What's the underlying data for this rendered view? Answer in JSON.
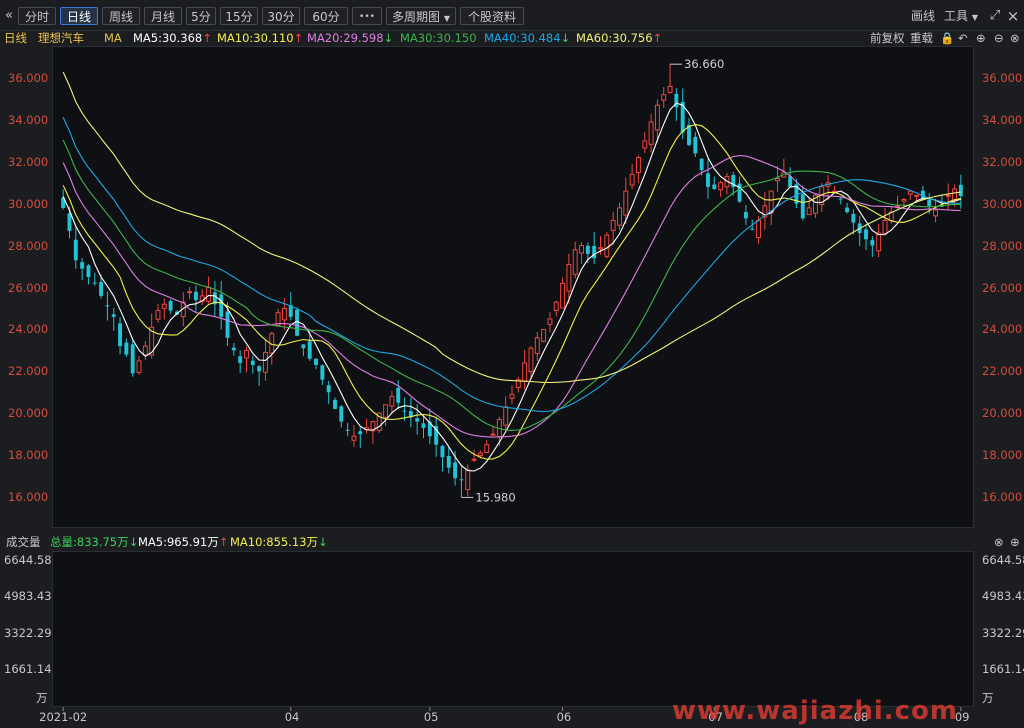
{
  "toolbar": {
    "back_icon": "«",
    "periods": [
      "分时",
      "日线",
      "周线",
      "月线",
      "5分",
      "15分",
      "30分",
      "60分"
    ],
    "active_period": "日线",
    "more_label": "•••",
    "multi_period_label": "多周期图",
    "stock_info_label": "个股资料",
    "draw_label": "画线",
    "tools_label": "工具",
    "expand_icon": "⤢",
    "close_icon": "×"
  },
  "info": {
    "period": "日线",
    "stock_name": "理想汽车",
    "indicator": "MA",
    "ma5": "MA5:30.368",
    "ma10": "MA10:30.110",
    "ma20": "MA20:29.598",
    "ma30": "MA30:30.150",
    "ma40": "MA40:30.484",
    "ma60": "MA60:30.756",
    "ma5_arrow": "↑",
    "ma10_arrow": "↑",
    "ma20_arrow": "↓",
    "ma40_arrow": "↓",
    "ma60_arrow": "↑",
    "adjust_label": "前复权",
    "reload_label": "重载"
  },
  "volume": {
    "title": "成交量",
    "total": "总量:833.75万",
    "total_arrow": "↓",
    "ma5": "MA5:965.91万",
    "ma5_arrow": "↑",
    "ma10": "MA10:855.13万",
    "ma10_arrow": "↓",
    "unit": "万"
  },
  "price_axis": [
    "36.000",
    "34.000",
    "32.000",
    "30.000",
    "28.000",
    "26.000",
    "24.000",
    "22.000",
    "20.000",
    "18.000",
    "16.000"
  ],
  "volume_axis": [
    "6644.58",
    "4983.43",
    "3322.29",
    "1661.14"
  ],
  "date_axis": [
    "2021-02",
    "04",
    "05",
    "06",
    "07",
    "08",
    "09"
  ],
  "annotations": {
    "high": "36.660",
    "low": "15.980"
  },
  "watermark": "www.wajiazhi.com",
  "colors": {
    "up": "#f0463c",
    "down": "#22c3d4",
    "ma5": "#ffffff",
    "ma10": "#f4f04a",
    "ma20": "#e07ee6",
    "ma30": "#3cb44b",
    "ma40": "#1ea7e4",
    "ma60": "#f2f27a",
    "axis_label": "#d94a3a",
    "background": "#0f1013"
  },
  "chart_data": {
    "type": "candlestick",
    "high": 36.66,
    "low": 15.98,
    "ylim": [
      15.0,
      37.5
    ],
    "closes": [
      29.8,
      28.7,
      27.3,
      26.9,
      26.5,
      26.2,
      25.6,
      25.1,
      24.6,
      23.2,
      22.8,
      21.9,
      22.5,
      23.2,
      24.1,
      24.9,
      25.2,
      24.9,
      24.7,
      25.3,
      25.8,
      25.4,
      25.6,
      26.0,
      25.2,
      24.6,
      23.6,
      23.0,
      22.4,
      23.0,
      22.3,
      22.0,
      22.9,
      23.8,
      24.8,
      25.0,
      24.6,
      23.7,
      23.1,
      22.6,
      22.3,
      21.6,
      21.0,
      20.2,
      19.6,
      19.2,
      18.9,
      19.0,
      19.3,
      19.6,
      20.0,
      20.4,
      20.8,
      20.5,
      20.1,
      19.8,
      19.6,
      19.3,
      18.9,
      18.5,
      17.9,
      17.4,
      16.9,
      16.8,
      17.3,
      17.8,
      18.1,
      18.5,
      19.0,
      19.7,
      20.3,
      20.9,
      21.6,
      22.4,
      23.1,
      23.6,
      24.0,
      24.5,
      25.3,
      26.2,
      27.1,
      27.8,
      28.0,
      27.6,
      27.4,
      27.9,
      28.5,
      29.2,
      29.8,
      30.6,
      31.4,
      32.2,
      33.0,
      33.9,
      34.7,
      35.2,
      35.6,
      34.6,
      33.4,
      32.8,
      32.4,
      31.6,
      30.8,
      30.7,
      31.0,
      31.3,
      30.8,
      30.1,
      29.3,
      28.8,
      29.2,
      29.9,
      30.6,
      31.2,
      31.5,
      30.8,
      30.0,
      29.3,
      29.8,
      30.4,
      30.8,
      31.0,
      30.6,
      30.2,
      29.6,
      29.1,
      28.6,
      28.3,
      28.0,
      28.6,
      29.2,
      29.6,
      29.9,
      30.2,
      30.6,
      30.4,
      30.2,
      29.9,
      29.7,
      29.9,
      30.4,
      30.7,
      30.368
    ],
    "volume_max": 6644.58
  }
}
